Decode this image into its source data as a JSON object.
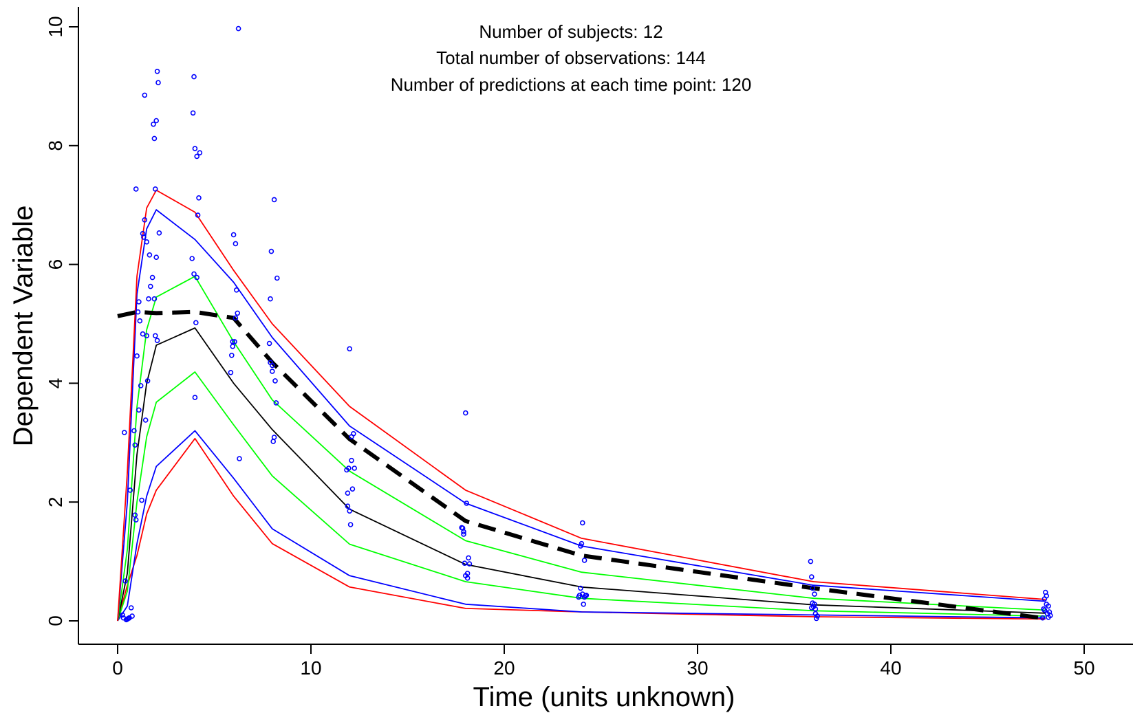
{
  "chart_data": {
    "type": "line",
    "xlabel": "Time (units unknown)",
    "ylabel": "Dependent Variable",
    "xlim": [
      0,
      50
    ],
    "ylim": [
      0,
      10
    ],
    "x_ticks": [
      0,
      10,
      20,
      30,
      40,
      50
    ],
    "y_ticks": [
      0,
      2,
      4,
      6,
      8,
      10
    ],
    "grid": false,
    "annotations": [
      "Number of subjects: 12",
      "Total number of observations: 144",
      "Number of predictions at each time point: 120"
    ],
    "series": [
      {
        "color": "#ff0000",
        "style": "solid",
        "x": [
          0,
          0.5,
          1,
          1.5,
          2,
          4,
          6,
          8,
          12,
          18,
          24,
          36,
          48
        ],
        "y": [
          0,
          0.6,
          1.1,
          1.8,
          2.2,
          3.07,
          2.1,
          1.3,
          0.57,
          0.21,
          0.15,
          0.07,
          0.03
        ]
      },
      {
        "color": "#0000ff",
        "style": "solid",
        "x": [
          0,
          0.5,
          1,
          1.5,
          2,
          4,
          6,
          8,
          12,
          18,
          24,
          36,
          48
        ],
        "y": [
          0,
          0.25,
          1.3,
          2.1,
          2.6,
          3.2,
          2.4,
          1.55,
          0.76,
          0.28,
          0.15,
          0.1,
          0.05
        ]
      },
      {
        "color": "#00ff00",
        "style": "solid",
        "x": [
          0,
          0.5,
          1,
          1.5,
          2,
          4,
          6,
          8,
          12,
          18,
          24,
          36,
          48
        ],
        "y": [
          0,
          0.5,
          2.0,
          3.1,
          3.68,
          4.19,
          3.3,
          2.44,
          1.29,
          0.66,
          0.38,
          0.17,
          0.08
        ]
      },
      {
        "color": "#000000",
        "style": "solid",
        "x": [
          0,
          0.5,
          1,
          1.5,
          2,
          4,
          6,
          8,
          12,
          18,
          24,
          36,
          48
        ],
        "y": [
          0,
          0.8,
          2.8,
          4.0,
          4.64,
          4.93,
          4.0,
          3.22,
          1.88,
          0.95,
          0.57,
          0.27,
          0.13
        ]
      },
      {
        "color": "#00ff00",
        "style": "solid",
        "x": [
          0,
          0.5,
          1,
          1.5,
          2,
          4,
          6,
          8,
          12,
          18,
          24,
          36,
          48
        ],
        "y": [
          0,
          1.2,
          3.6,
          4.9,
          5.45,
          5.8,
          4.7,
          3.72,
          2.52,
          1.35,
          0.82,
          0.38,
          0.18
        ]
      },
      {
        "color": "#0000ff",
        "style": "solid",
        "x": [
          0,
          0.5,
          1,
          1.5,
          2,
          4,
          6,
          8,
          12,
          18,
          24,
          36,
          48
        ],
        "y": [
          0,
          2.0,
          5.5,
          6.6,
          6.92,
          6.42,
          5.7,
          4.77,
          3.28,
          1.98,
          1.26,
          0.6,
          0.33
        ]
      },
      {
        "color": "#ff0000",
        "style": "solid",
        "x": [
          0,
          0.5,
          1,
          1.5,
          2,
          4,
          6,
          8,
          12,
          18,
          24,
          36,
          48
        ],
        "y": [
          0,
          2.5,
          5.8,
          6.95,
          7.25,
          6.88,
          5.9,
          5.0,
          3.61,
          2.2,
          1.39,
          0.66,
          0.36
        ]
      },
      {
        "color": "#000000",
        "style": "dashed",
        "x": [
          0,
          1,
          2,
          4,
          6,
          8,
          12,
          18,
          24,
          36,
          48
        ],
        "y": [
          5.13,
          5.2,
          5.18,
          5.2,
          5.1,
          4.35,
          3.06,
          1.68,
          1.1,
          0.55,
          0.04
        ]
      }
    ],
    "points": {
      "color": "#0000ff",
      "x": [
        0.25,
        0.3,
        0.35,
        0.4,
        0.45,
        0.5,
        0.55,
        0.6,
        0.6,
        0.65,
        0.7,
        0.75,
        0.85,
        0.9,
        0.9,
        0.95,
        1.0,
        1.05,
        1.1,
        1.15,
        1.2,
        1.25,
        1.1,
        0.95,
        1.3,
        1.35,
        1.4,
        1.45,
        1.5,
        1.55,
        1.6,
        1.65,
        1.7,
        1.4,
        1.3,
        1.5,
        1.8,
        1.85,
        1.9,
        1.95,
        2.0,
        2.05,
        2.1,
        2.15,
        1.95,
        2.0,
        2.05,
        1.9,
        3.85,
        3.9,
        3.95,
        4.0,
        4.05,
        4.1,
        4.15,
        4.2,
        4.25,
        4.0,
        4.1,
        3.95,
        5.85,
        5.9,
        5.95,
        6.0,
        6.05,
        6.1,
        6.15,
        6.2,
        6.25,
        6.3,
        5.95,
        6.1,
        7.85,
        7.9,
        7.95,
        8.0,
        8.05,
        8.1,
        8.15,
        8.2,
        8.25,
        7.9,
        8.0,
        8.1,
        11.85,
        11.9,
        11.95,
        12.0,
        12.05,
        12.1,
        12.15,
        12.2,
        12.25,
        11.9,
        12.0,
        12.1,
        17.8,
        17.85,
        17.9,
        17.95,
        18.0,
        18.05,
        18.1,
        18.15,
        18.2,
        17.9,
        18.0,
        18.1,
        23.85,
        23.9,
        23.95,
        24.0,
        24.05,
        24.1,
        24.15,
        24.2,
        24.25,
        23.95,
        24.05,
        24.15,
        35.85,
        35.9,
        35.95,
        36.0,
        36.05,
        36.1,
        36.15,
        36.2,
        35.95,
        36.05,
        35.9,
        36.1,
        47.85,
        47.9,
        47.95,
        48.0,
        48.05,
        48.1,
        48.15,
        48.2,
        48.25,
        47.95,
        48.05,
        48.15
      ],
      "y": [
        0.1,
        0.05,
        3.17,
        0.67,
        0.02,
        0.03,
        0.04,
        0.05,
        0.05,
        2.2,
        0.22,
        0.08,
        3.2,
        2.96,
        1.78,
        1.7,
        4.46,
        5.2,
        5.37,
        5.05,
        3.96,
        2.03,
        3.55,
        7.27,
        4.83,
        6.46,
        6.75,
        3.38,
        6.38,
        4.04,
        5.42,
        6.16,
        5.63,
        8.85,
        6.52,
        4.8,
        5.78,
        8.36,
        5.42,
        4.8,
        8.42,
        9.25,
        9.06,
        6.53,
        7.27,
        6.12,
        4.72,
        8.12,
        6.1,
        8.55,
        5.84,
        3.76,
        5.02,
        5.78,
        6.83,
        7.12,
        7.88,
        7.95,
        7.82,
        9.16,
        4.18,
        4.47,
        4.7,
        6.5,
        4.7,
        6.35,
        5.57,
        5.18,
        9.97,
        2.73,
        4.62,
        5.1,
        4.67,
        5.42,
        6.22,
        4.2,
        3.02,
        3.09,
        4.04,
        3.67,
        5.77,
        4.35,
        4.3,
        7.09,
        2.54,
        2.15,
        2.57,
        1.85,
        1.62,
        2.7,
        2.22,
        3.15,
        2.57,
        1.93,
        4.58,
        3.1,
        1.57,
        1.56,
        1.46,
        0.97,
        0.76,
        1.98,
        0.72,
        1.06,
        0.96,
        1.5,
        3.5,
        0.8,
        0.4,
        0.43,
        0.55,
        1.3,
        1.65,
        0.28,
        1.02,
        0.42,
        0.43,
        1.26,
        0.45,
        0.4,
        1.0,
        0.74,
        0.3,
        0.24,
        0.28,
        0.2,
        0.04,
        0.08,
        0.55,
        0.45,
        0.22,
        0.12,
        0.05,
        0.2,
        0.37,
        0.48,
        0.42,
        0.12,
        0.25,
        0.15,
        0.09,
        0.18,
        0.28,
        0.06
      ]
    }
  }
}
